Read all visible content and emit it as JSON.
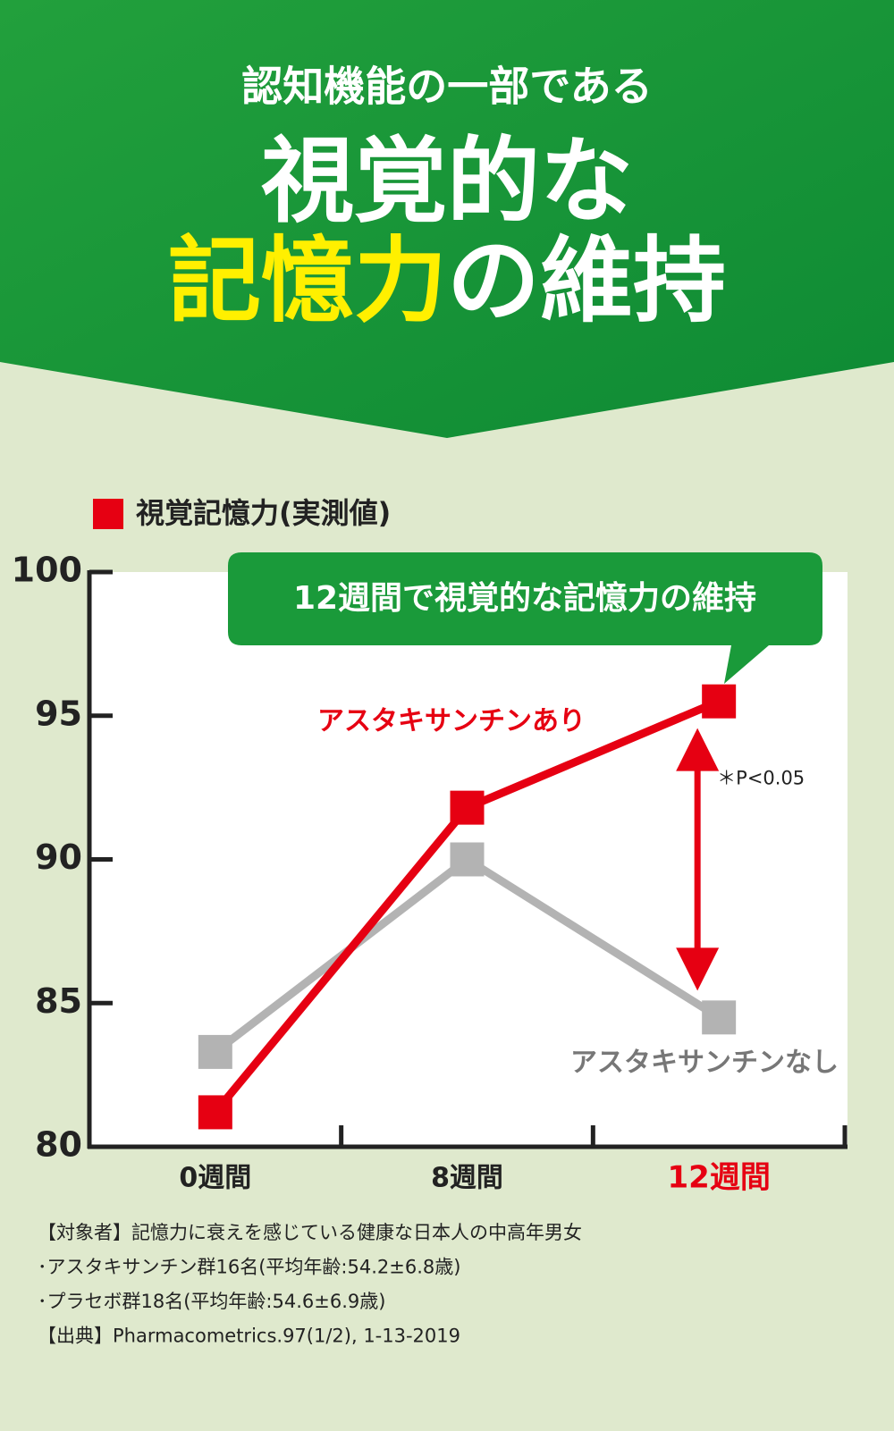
{
  "header": {
    "line1": "認知機能の一部である",
    "line2": "視覚的な",
    "line3_highlight": "記憶力",
    "line3_rest": "の維持"
  },
  "chart_data": {
    "type": "line",
    "legend_title": "視覚記憶力(実測値)",
    "legend_color": "#e60012",
    "callout": "12週間で視覚的な記憶力の維持",
    "significance": "＊P<0.05",
    "categories": [
      "0週間",
      "8週間",
      "12週間"
    ],
    "category_colors": [
      "#222222",
      "#222222",
      "#e60012"
    ],
    "series": [
      {
        "name": "アスタキサンチンあり",
        "color": "#e60012",
        "values": [
          81.2,
          91.8,
          95.5
        ]
      },
      {
        "name": "アスタキサンチンなし",
        "color": "#b3b3b3",
        "values": [
          83.3,
          90.0,
          84.5
        ]
      }
    ],
    "ylim": [
      80,
      100
    ],
    "yticks": [
      80,
      85,
      90,
      95,
      100
    ],
    "grid": false
  },
  "notes": [
    "【対象者】記憶力に衰えを感じている健康な日本人の中高年男女",
    "･アスタキサンチン群16名(平均年齢:54.2±6.8歳)",
    "･プラセボ群18名(平均年齢:54.6±6.9歳)",
    "【出典】Pharmacometrics.97(1/2), 1-13-2019"
  ]
}
